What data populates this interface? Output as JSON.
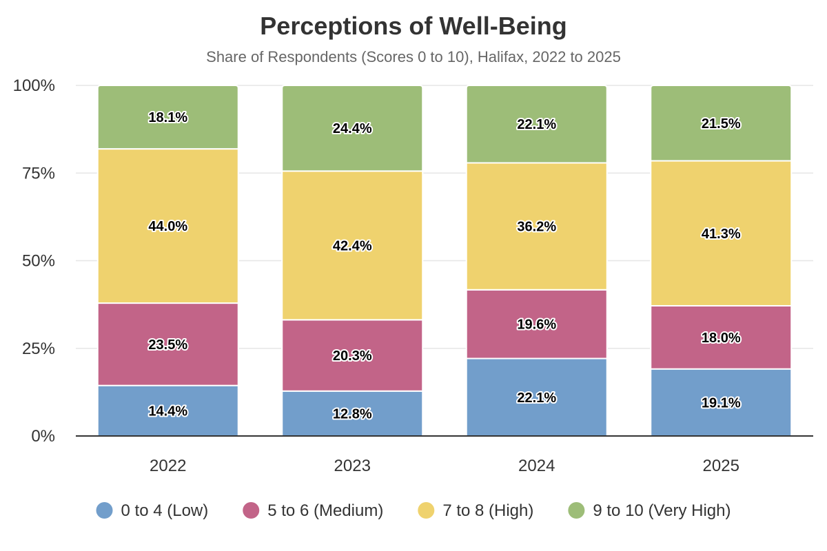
{
  "chart_data": {
    "type": "bar",
    "stacked": true,
    "title": "Perceptions of Well-Being",
    "subtitle": "Share of Respondents (Scores 0 to 10), Halifax, 2022 to 2025",
    "categories": [
      "2022",
      "2023",
      "2024",
      "2025"
    ],
    "ylim": [
      0,
      100
    ],
    "yticks": [
      0,
      25,
      50,
      75,
      100
    ],
    "ytick_labels": [
      "0%",
      "25%",
      "50%",
      "75%",
      "100%"
    ],
    "grid": true,
    "legend_position": "bottom",
    "series": [
      {
        "name": "0 to 4 (Low)",
        "color": "#729ECB",
        "values": [
          14.4,
          12.8,
          22.1,
          19.1
        ],
        "labels": [
          "14.4%",
          "12.8%",
          "22.1%",
          "19.1%"
        ]
      },
      {
        "name": "5 to 6 (Medium)",
        "color": "#C26488",
        "values": [
          23.5,
          20.3,
          19.6,
          18.0
        ],
        "labels": [
          "23.5%",
          "20.3%",
          "19.6%",
          "18.0%"
        ]
      },
      {
        "name": "7 to 8 (High)",
        "color": "#EFD26E",
        "values": [
          44.0,
          42.4,
          36.2,
          41.3
        ],
        "labels": [
          "44.0%",
          "42.4%",
          "36.2%",
          "41.3%"
        ]
      },
      {
        "name": "9 to 10 (Very High)",
        "color": "#9DBD78",
        "values": [
          18.1,
          24.4,
          22.1,
          21.5
        ],
        "labels": [
          "18.1%",
          "24.4%",
          "22.1%",
          "21.5%"
        ]
      }
    ]
  }
}
